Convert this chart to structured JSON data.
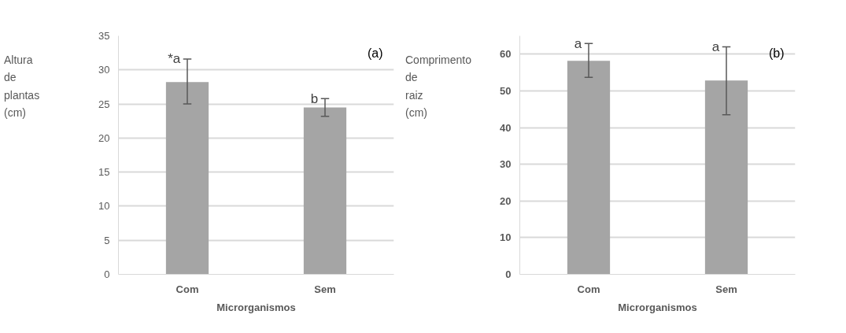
{
  "chart_data": [
    {
      "type": "bar",
      "categories": [
        "Com",
        "Sem"
      ],
      "xlabel": "Microrganismos",
      "ylabel": "Altura de plantas (cm)",
      "series": [
        {
          "color": "#a5a5a5",
          "values": [
            28.2,
            24.5
          ],
          "errors": [
            [
              25.0,
              31.6
            ],
            [
              23.2,
              25.8
            ]
          ]
        }
      ],
      "ylim": [
        0,
        35
      ],
      "yticks": [
        0,
        5,
        10,
        15,
        20,
        25,
        30,
        35
      ],
      "grid": "y",
      "annotations": [
        {
          "text": "*a",
          "x": "Com",
          "y": 31.6
        },
        {
          "text": "b",
          "x": "Sem",
          "y": 25.8
        },
        "(a)"
      ]
    },
    {
      "type": "bar",
      "categories": [
        "Com",
        "Sem"
      ],
      "xlabel": "Microrganismos",
      "ylabel": "Comprimento de raiz (cm)",
      "series": [
        {
          "color": "#a5a5a5",
          "values": [
            58.2,
            52.8
          ],
          "errors": [
            [
              53.7,
              62.9
            ],
            [
              43.5,
              62.0
            ]
          ]
        }
      ],
      "ylim": [
        0,
        65
      ],
      "yticks": [
        0,
        10,
        20,
        30,
        40,
        50,
        60
      ],
      "grid": "y",
      "annotations": [
        {
          "text": "a",
          "x": "Com",
          "y": 62.9
        },
        {
          "text": "a",
          "x": "Sem",
          "y": 62.0
        },
        "(b)"
      ]
    }
  ]
}
